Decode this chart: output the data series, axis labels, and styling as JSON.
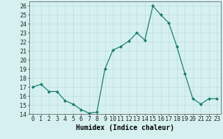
{
  "x": [
    0,
    1,
    2,
    3,
    4,
    5,
    6,
    7,
    8,
    9,
    10,
    11,
    12,
    13,
    14,
    15,
    16,
    17,
    18,
    19,
    20,
    21,
    22,
    23
  ],
  "y": [
    17.0,
    17.3,
    16.5,
    16.5,
    15.5,
    15.1,
    14.5,
    14.1,
    14.2,
    19.0,
    21.1,
    21.5,
    22.1,
    23.0,
    22.2,
    26.0,
    25.0,
    24.1,
    21.5,
    18.5,
    15.7,
    15.1,
    15.7,
    15.7
  ],
  "line_color": "#1a7a6e",
  "marker": "D",
  "marker_size": 2,
  "bg_color": "#d6f0f0",
  "grid_color": "#b8dede",
  "xlabel": "Humidex (Indice chaleur)",
  "xlim": [
    -0.5,
    23.5
  ],
  "ylim": [
    14,
    26.5
  ],
  "xticks": [
    0,
    1,
    2,
    3,
    4,
    5,
    6,
    7,
    8,
    9,
    10,
    11,
    12,
    13,
    14,
    15,
    16,
    17,
    18,
    19,
    20,
    21,
    22,
    23
  ],
  "yticks": [
    14,
    15,
    16,
    17,
    18,
    19,
    20,
    21,
    22,
    23,
    24,
    25,
    26
  ],
  "xlabel_fontsize": 7,
  "tick_fontsize": 6
}
